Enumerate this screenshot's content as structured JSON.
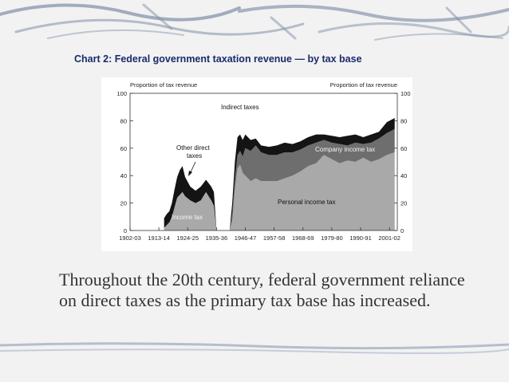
{
  "slide": {
    "heading": "Chart 2: Federal government taxation revenue — by tax base",
    "body": "Throughout the 20th century, federal government reliance on direct taxes as the primary tax base has increased.",
    "colors": {
      "title": "#1a2a6c",
      "text": "#333333",
      "decor": "#7f8fa6"
    }
  },
  "chart_data": {
    "type": "area",
    "title": "Federal government taxation revenue — by tax base",
    "left_axis_label": "Proportion of tax revenue",
    "right_axis_label": "Proportion of tax revenue",
    "ylim": [
      0,
      100
    ],
    "y_ticks": [
      "100",
      "80",
      "60",
      "40",
      "20",
      "0"
    ],
    "x_tick_labels": [
      "1902-03",
      "1913-14",
      "1924-25",
      "1935-36",
      "1946-47",
      "1957-58",
      "1968-69",
      "1979-80",
      "1990-91",
      "2001-02"
    ],
    "annotations": {
      "indirect": "Indirect taxes",
      "other_direct_line1": "Other direct",
      "other_direct_line2": "taxes",
      "company": "Company income tax",
      "personal": "Personal income tax",
      "income": "Income tax"
    },
    "x": [
      1915,
      1916,
      1917,
      1918,
      1919,
      1920,
      1921,
      1922,
      1923,
      1925,
      1927,
      1929,
      1931,
      1933,
      1934,
      1935,
      1936,
      1937,
      1938,
      1939,
      1940,
      1941,
      1942,
      1943,
      1944,
      1945,
      1946,
      1948,
      1950,
      1952,
      1955,
      1958,
      1961,
      1964,
      1967,
      1970,
      1973,
      1976,
      1979,
      1982,
      1985,
      1988,
      1991,
      1994,
      1997,
      2000,
      2003
    ],
    "series": [
      {
        "name": "Income tax / Personal income tax",
        "color": "#a9a9a9",
        "values": [
          2,
          4,
          6,
          10,
          17,
          24,
          26,
          28,
          25,
          22,
          20,
          22,
          28,
          22,
          18,
          0,
          0,
          0,
          0,
          0,
          0,
          7,
          30,
          45,
          48,
          42,
          40,
          36,
          38,
          36,
          36,
          36,
          38,
          40,
          43,
          47,
          49,
          55,
          52,
          49,
          51,
          50,
          53,
          50,
          52,
          55,
          57
        ]
      },
      {
        "name": "Company income tax",
        "color": "#6e6e6e",
        "values": [
          0,
          0,
          0,
          0,
          0,
          0,
          0,
          0,
          0,
          0,
          0,
          0,
          0,
          0,
          0,
          0,
          0,
          0,
          0,
          0,
          0,
          5,
          7,
          10,
          10,
          12,
          20,
          22,
          24,
          21,
          19,
          19,
          19,
          17,
          16,
          15,
          15,
          11,
          12,
          14,
          11,
          14,
          10,
          14,
          15,
          16,
          17
        ]
      },
      {
        "name": "Other direct taxes",
        "color": "#141414",
        "values": [
          7,
          8,
          8,
          10,
          13,
          15,
          18,
          19,
          14,
          10,
          9,
          10,
          9,
          10,
          10,
          0,
          0,
          0,
          0,
          0,
          0,
          8,
          13,
          13,
          12,
          12,
          10,
          8,
          5,
          5,
          6,
          7,
          7,
          6,
          6,
          6,
          6,
          4,
          5,
          5,
          7,
          6,
          5,
          6,
          5,
          8,
          8
        ]
      }
    ]
  }
}
